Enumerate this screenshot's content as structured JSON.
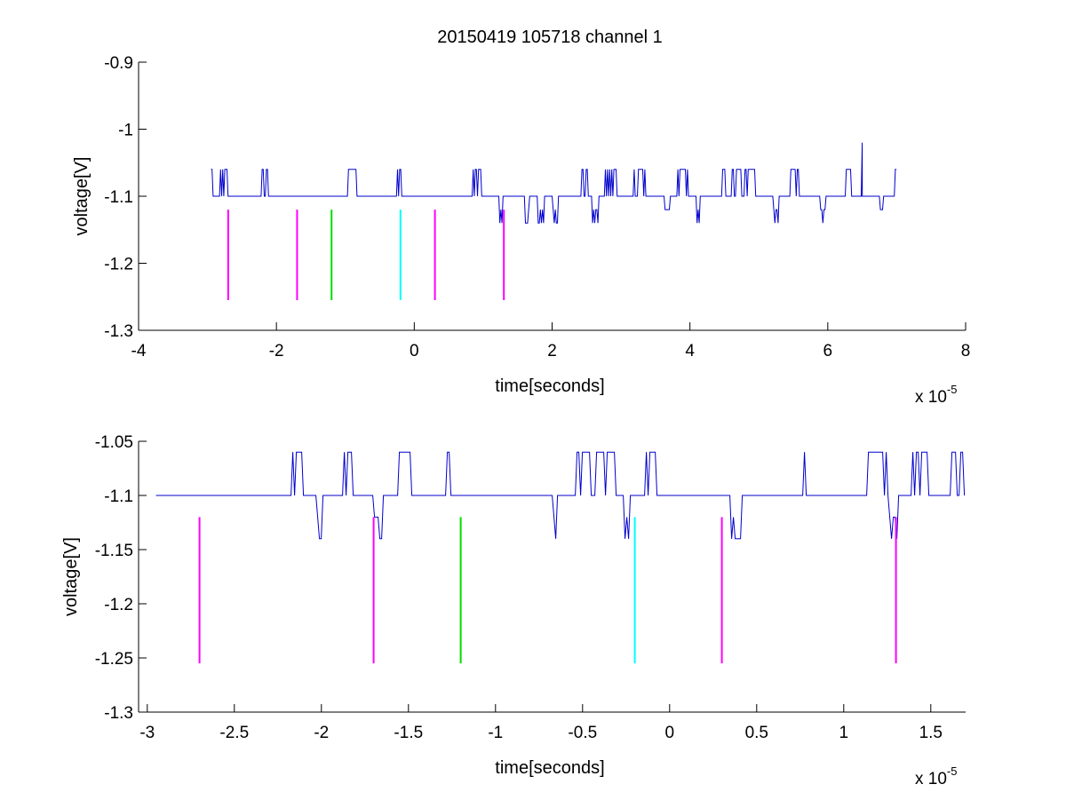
{
  "figure": {
    "title": "20150419 105718 channel 1"
  },
  "chart_data": [
    {
      "type": "line",
      "title": "20150419 105718 channel 1",
      "xlabel": "time[seconds]",
      "ylabel": "voltage[V]",
      "x_exponent": {
        "base": "x 10",
        "power": "-5"
      },
      "xlim": [
        -4e-05,
        8e-05
      ],
      "ylim": [
        -1.3,
        -0.9
      ],
      "xticks": [
        -4e-05,
        -2e-05,
        0,
        2e-05,
        4e-05,
        6e-05,
        8e-05
      ],
      "xtick_labels": [
        "-4",
        "-2",
        "0",
        "2",
        "4",
        "6",
        "8"
      ],
      "yticks": [
        -1.3,
        -1.2,
        -1.1,
        -1.0,
        -0.9
      ],
      "ytick_labels": [
        "-1.3",
        "-1.2",
        "-1.1",
        "-1",
        "-0.9"
      ],
      "grid": false,
      "series": [
        {
          "color": "#0000cc",
          "x_range": [
            -2.95e-05,
            7e-05
          ],
          "baseline": -1.1,
          "levels": [
            -1.14,
            -1.1,
            -1.06
          ],
          "spikes": [
            {
              "x": 6.5e-05,
              "y": -1.02
            }
          ]
        }
      ],
      "markers": [
        {
          "x": -2.7e-05,
          "y_top": -1.12,
          "y_bottom": -1.255,
          "color": "#ff00ff"
        },
        {
          "x": -1.7e-05,
          "y_top": -1.12,
          "y_bottom": -1.255,
          "color": "#ff00ff"
        },
        {
          "x": -1.2e-05,
          "y_top": -1.12,
          "y_bottom": -1.255,
          "color": "#00dd00"
        },
        {
          "x": -2e-06,
          "y_top": -1.12,
          "y_bottom": -1.255,
          "color": "#00ffff"
        },
        {
          "x": 3e-06,
          "y_top": -1.12,
          "y_bottom": -1.255,
          "color": "#ff00ff"
        },
        {
          "x": 1.3e-05,
          "y_top": -1.12,
          "y_bottom": -1.255,
          "color": "#ff00ff"
        }
      ]
    },
    {
      "type": "line",
      "title": "",
      "xlabel": "time[seconds]",
      "ylabel": "voltage[V]",
      "x_exponent": {
        "base": "x 10",
        "power": "-5"
      },
      "xlim": [
        -3.05e-05,
        1.7e-05
      ],
      "ylim": [
        -1.3,
        -1.05
      ],
      "xticks": [
        -3e-05,
        -2.5e-05,
        -2e-05,
        -1.5e-05,
        -1e-05,
        -5e-06,
        0,
        5e-06,
        1e-05,
        1.5e-05
      ],
      "xtick_labels": [
        "-3",
        "-2.5",
        "-2",
        "-1.5",
        "-1",
        "-0.5",
        "0",
        "0.5",
        "1",
        "1.5"
      ],
      "yticks": [
        -1.3,
        -1.25,
        -1.2,
        -1.15,
        -1.1,
        -1.05
      ],
      "ytick_labels": [
        "-1.3",
        "-1.25",
        "-1.2",
        "-1.15",
        "-1.1",
        "-1.05"
      ],
      "grid": false,
      "series": [
        {
          "color": "#0000cc",
          "x_range": [
            -2.95e-05,
            1.7e-05
          ],
          "baseline": -1.1,
          "levels": [
            -1.14,
            -1.1,
            -1.06
          ]
        }
      ],
      "markers": [
        {
          "x": -2.7e-05,
          "y_top": -1.12,
          "y_bottom": -1.255,
          "color": "#ff00ff"
        },
        {
          "x": -1.7e-05,
          "y_top": -1.12,
          "y_bottom": -1.255,
          "color": "#ff00ff"
        },
        {
          "x": -1.2e-05,
          "y_top": -1.12,
          "y_bottom": -1.255,
          "color": "#00dd00"
        },
        {
          "x": -2e-06,
          "y_top": -1.12,
          "y_bottom": -1.255,
          "color": "#00ffff"
        },
        {
          "x": 3e-06,
          "y_top": -1.12,
          "y_bottom": -1.255,
          "color": "#ff00ff"
        },
        {
          "x": 1.3e-05,
          "y_top": -1.12,
          "y_bottom": -1.255,
          "color": "#ff00ff"
        }
      ]
    }
  ]
}
